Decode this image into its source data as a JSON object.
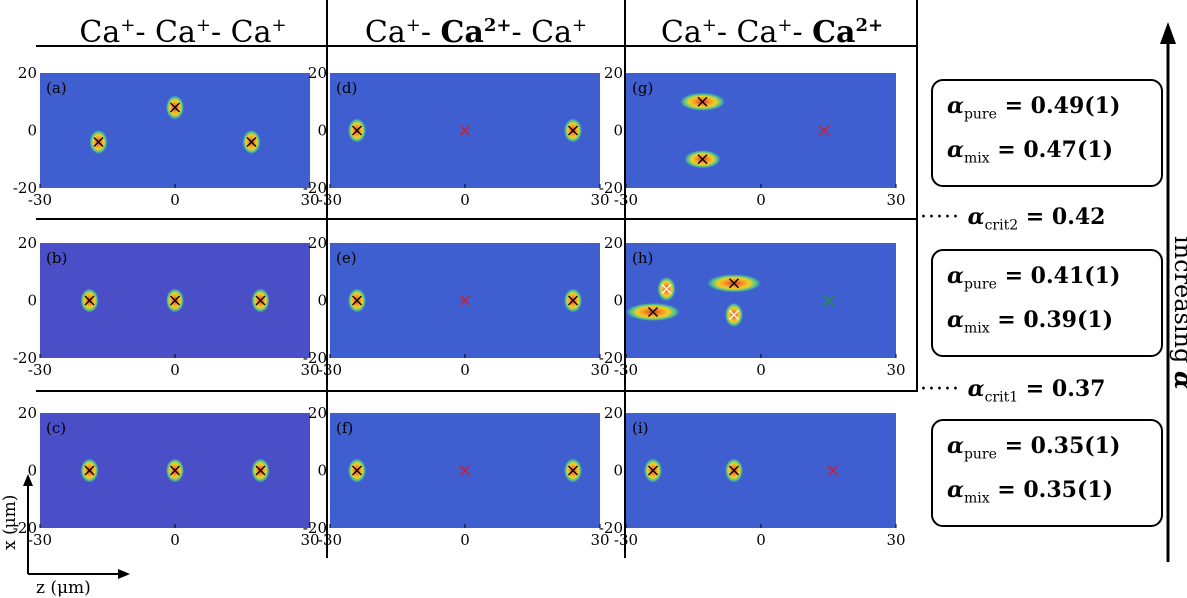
{
  "columns": [
    {
      "ion1": "Ca",
      "ion1_charge": "+",
      "sep1": "- ",
      "ion2": "Ca",
      "ion2_charge": "+",
      "sep2": "- ",
      "ion3": "Ca",
      "ion3_charge": "+",
      "bold": 0
    },
    {
      "ion1": "Ca",
      "ion1_charge": "+",
      "sep1": "- ",
      "ion2": "Ca",
      "ion2_charge": "2+",
      "sep2": "- ",
      "ion3": "Ca",
      "ion3_charge": "+",
      "bold": 2
    },
    {
      "ion1": "Ca",
      "ion1_charge": "+",
      "sep1": "- ",
      "ion2": "Ca",
      "ion2_charge": "+",
      "sep2": "- ",
      "ion3": "Ca",
      "ion3_charge": "2+",
      "bold": 3
    }
  ],
  "alpha_boxes": [
    {
      "pure_label": "pure",
      "pure_value": "= 0.49(1)",
      "mix_label": "mix",
      "mix_value": "= 0.47(1)"
    },
    {
      "pure_label": "pure",
      "pure_value": "= 0.41(1)",
      "mix_label": "mix",
      "mix_value": "= 0.39(1)"
    },
    {
      "pure_label": "pure",
      "pure_value": "= 0.35(1)",
      "mix_label": "mix",
      "mix_value": "= 0.35(1)"
    }
  ],
  "critical": [
    {
      "sub": "crit2",
      "value": "= 0.42"
    },
    {
      "sub": "crit1",
      "value": "= 0.37"
    }
  ],
  "alpha_symbol": "α",
  "side_label": "increasing",
  "dots": "·····",
  "x_axis_label": "z (μm)",
  "y_axis_label": "x (μm)",
  "colors": {
    "background": "#3f5fd0",
    "bg_purple": "#4a4fc8",
    "hot": "#e8312a",
    "warm": "#f2d024",
    "mid": "#52c98a"
  },
  "chart_data": {
    "type": "heatmap",
    "xlim": [
      -30,
      30
    ],
    "ylim": [
      -20,
      20
    ],
    "xticks": [
      "-30",
      "0",
      "30"
    ],
    "yticks": [
      "20",
      "0",
      "-20"
    ],
    "panels": [
      {
        "id": "a",
        "label": "(a)",
        "ions": [
          {
            "z": -17,
            "x": -4,
            "mark": "black"
          },
          {
            "z": 0,
            "x": 8,
            "mark": "black"
          },
          {
            "z": 17,
            "x": -4,
            "mark": "black"
          }
        ]
      },
      {
        "id": "d",
        "label": "(d)",
        "ions": [
          {
            "z": -24,
            "x": 0,
            "mark": "black"
          },
          {
            "z": 0,
            "x": 0,
            "mark": "red",
            "dark": true
          },
          {
            "z": 24,
            "x": 0,
            "mark": "black"
          }
        ]
      },
      {
        "id": "g",
        "label": "(g)",
        "ions": [
          {
            "z": -13,
            "x": 10,
            "mark": "black",
            "spread": 2.5
          },
          {
            "z": -13,
            "x": -10,
            "mark": "black",
            "spread": 2
          },
          {
            "z": 14,
            "x": 0,
            "mark": "red",
            "dark": true
          }
        ]
      },
      {
        "id": "b",
        "label": "(b)",
        "ions": [
          {
            "z": -19,
            "x": 0,
            "mark": "black"
          },
          {
            "z": 0,
            "x": 0,
            "mark": "black"
          },
          {
            "z": 19,
            "x": 0,
            "mark": "black"
          }
        ]
      },
      {
        "id": "e",
        "label": "(e)",
        "ions": [
          {
            "z": -24,
            "x": 0,
            "mark": "black"
          },
          {
            "z": 0,
            "x": 0,
            "mark": "red",
            "dark": true
          },
          {
            "z": 24,
            "x": 0,
            "mark": "black"
          }
        ]
      },
      {
        "id": "h",
        "label": "(h)",
        "ions": [
          {
            "z": -24,
            "x": -4,
            "mark": "black",
            "spread": 3
          },
          {
            "z": -21,
            "x": 4,
            "mark": "white"
          },
          {
            "z": -6,
            "x": 6,
            "mark": "black",
            "spread": 3
          },
          {
            "z": -6,
            "x": -5,
            "mark": "white"
          },
          {
            "z": 15,
            "x": 0,
            "mark": "green",
            "dark": true
          }
        ]
      },
      {
        "id": "c",
        "label": "(c)",
        "ions": [
          {
            "z": -19,
            "x": 0,
            "mark": "black"
          },
          {
            "z": 0,
            "x": 0,
            "mark": "black"
          },
          {
            "z": 19,
            "x": 0,
            "mark": "black"
          }
        ]
      },
      {
        "id": "f",
        "label": "(f)",
        "ions": [
          {
            "z": -24,
            "x": 0,
            "mark": "black"
          },
          {
            "z": 0,
            "x": 0,
            "mark": "red",
            "dark": true
          },
          {
            "z": 24,
            "x": 0,
            "mark": "black"
          }
        ]
      },
      {
        "id": "i",
        "label": "(i)",
        "ions": [
          {
            "z": -24,
            "x": 0,
            "mark": "black"
          },
          {
            "z": -6,
            "x": 0,
            "mark": "black"
          },
          {
            "z": 16,
            "x": 0,
            "mark": "red",
            "dark": true
          }
        ]
      }
    ]
  }
}
